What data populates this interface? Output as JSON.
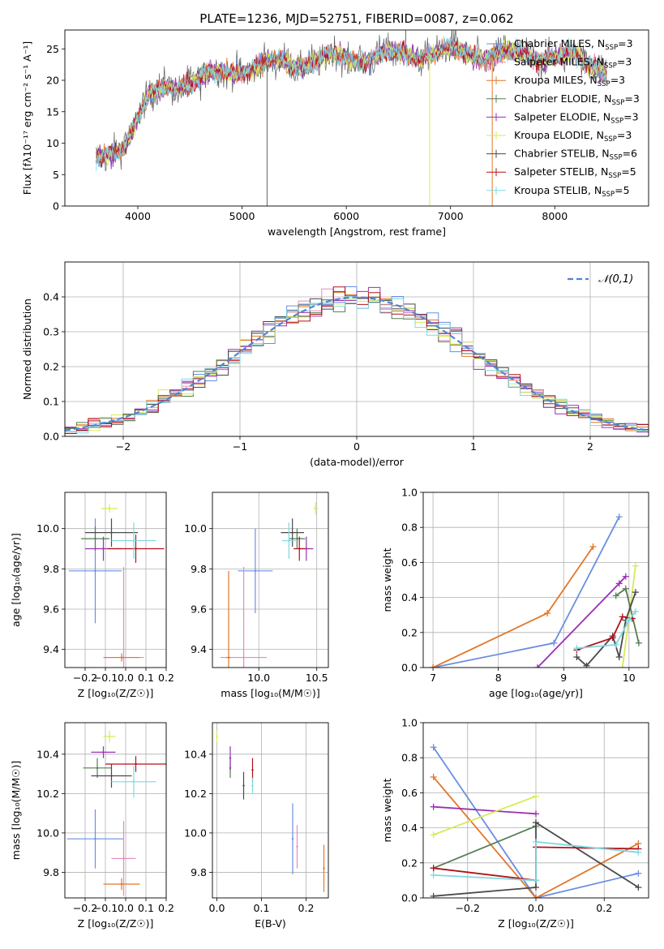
{
  "figure": {
    "title": "PLATE=1236, MJD=52751, FIBERID=0087, z=0.062"
  },
  "models": [
    {
      "name": "Chabrier MILES",
      "nssp": "3",
      "color": "#6a8fe0"
    },
    {
      "name": "Salpeter MILES",
      "nssp": "3",
      "color": "#e58bbf"
    },
    {
      "name": "Kroupa MILES",
      "nssp": "3",
      "color": "#e2772a"
    },
    {
      "name": "Chabrier ELODIE",
      "nssp": "3",
      "color": "#547d54"
    },
    {
      "name": "Salpeter ELODIE",
      "nssp": "3",
      "color": "#9a2fb3"
    },
    {
      "name": "Kroupa ELODIE",
      "nssp": "3",
      "color": "#d7ea57"
    },
    {
      "name": "Chabrier STELIB",
      "nssp": "6",
      "color": "#4a4a4a"
    },
    {
      "name": "Salpeter STELIB",
      "nssp": "5",
      "color": "#b3101a"
    },
    {
      "name": "Kroupa STELIB",
      "nssp": "5",
      "color": "#7fd8e0"
    }
  ],
  "chart_data": [
    {
      "type": "line",
      "xlabel": "wavelength [Angstrom, rest frame]",
      "ylabel": "Flux [fλ10⁻¹⁷ erg cm⁻² s⁻¹ A⁻¹]",
      "xlim": [
        3300,
        8900
      ],
      "ylim": [
        0,
        28
      ],
      "xticks": [
        4000,
        5000,
        6000,
        7000,
        8000
      ],
      "yticks": [
        0,
        5,
        10,
        15,
        20,
        25
      ],
      "x_range_data": [
        3600,
        8500
      ],
      "continuum": {
        "x": [
          3600,
          3700,
          3800,
          3900,
          4000,
          4100,
          4300,
          4500,
          4800,
          5000,
          5300,
          5600,
          6000,
          6500,
          7000,
          7400,
          7800,
          8200,
          8500
        ],
        "y": [
          7,
          8,
          9,
          11,
          14,
          17,
          19,
          20,
          21,
          22,
          22.5,
          23,
          23.5,
          24,
          24.5,
          24,
          24,
          23.5,
          22
        ]
      },
      "spikes": [
        {
          "x": 5240,
          "y": 0
        },
        {
          "x": 6800,
          "y": 0
        },
        {
          "x": 7400,
          "y": 0
        },
        {
          "x": 6570,
          "y": 28
        }
      ],
      "grid": false,
      "legend": "right"
    },
    {
      "type": "bar",
      "xlabel": "(data-model)/error",
      "ylabel": "Normed distribution",
      "xlim": [
        -2.5,
        2.5
      ],
      "ylim": [
        0,
        0.5
      ],
      "xticks": [
        -2,
        -1,
        0,
        1,
        2
      ],
      "yticks": [
        0.0,
        0.1,
        0.2,
        0.3,
        0.4
      ],
      "bin_width": 0.1,
      "grid": true,
      "legend": "top-right",
      "reference_curve": {
        "name": "𝒩(0,1)",
        "color": "#4f84d3",
        "style": "dashed"
      },
      "histogram_peak_range": [
        0.34,
        0.47
      ]
    },
    {
      "type": "scatter",
      "xlabel": "Z [log₁₀(Z/Z☉)]",
      "ylabel": "age  [log₁₀(age/yr)]",
      "xlim": [
        -0.3,
        0.2
      ],
      "ylim": [
        9.31,
        10.18
      ],
      "xticks": [
        -0.2,
        -0.1,
        0.0,
        0.1,
        0.2
      ],
      "yticks": [
        9.4,
        9.6,
        9.8,
        10.0
      ],
      "grid": true,
      "points": [
        {
          "model": 0,
          "x": -0.15,
          "y": 9.79,
          "xerr": 0.13,
          "yerr": 0.26
        },
        {
          "model": 1,
          "x": -0.01,
          "y": 9.36,
          "xerr": 0.1,
          "yerr": 0.45
        },
        {
          "model": 2,
          "x": -0.02,
          "y": 9.36,
          "xerr": 0.09,
          "yerr": 0.02
        },
        {
          "model": 3,
          "x": -0.15,
          "y": 9.95,
          "xerr": 0.07,
          "yerr": 0.06
        },
        {
          "model": 4,
          "x": -0.11,
          "y": 9.9,
          "xerr": 0.09,
          "yerr": 0.06
        },
        {
          "model": 5,
          "x": -0.08,
          "y": 10.1,
          "xerr": 0.04,
          "yerr": 0.02
        },
        {
          "model": 6,
          "x": -0.07,
          "y": 9.98,
          "xerr": 0.13,
          "yerr": 0.07
        },
        {
          "model": 7,
          "x": 0.05,
          "y": 9.9,
          "xerr": 0.14,
          "yerr": 0.07
        },
        {
          "model": 8,
          "x": 0.04,
          "y": 9.94,
          "xerr": 0.11,
          "yerr": 0.09
        }
      ]
    },
    {
      "type": "scatter",
      "xlabel": "mass [log₁₀(M/M☉)]",
      "ylabel": "",
      "xlim": [
        9.6,
        10.6
      ],
      "ylim": [
        9.31,
        10.18
      ],
      "xticks": [
        10.0,
        10.5
      ],
      "yticks": [
        9.4,
        9.6,
        9.8,
        10.0
      ],
      "grid": true,
      "points": [
        {
          "model": 0,
          "x": 9.97,
          "y": 9.79,
          "xerr": 0.15,
          "yerr": 0.21
        },
        {
          "model": 1,
          "x": 9.87,
          "y": 9.36,
          "xerr": 0.2,
          "yerr": 0.45
        },
        {
          "model": 2,
          "x": 9.74,
          "y": 9.36,
          "xerr": 0.02,
          "yerr": 0.43
        },
        {
          "model": 3,
          "x": 10.33,
          "y": 9.95,
          "xerr": 0.07,
          "yerr": 0.05
        },
        {
          "model": 4,
          "x": 10.41,
          "y": 9.9,
          "xerr": 0.06,
          "yerr": 0.06
        },
        {
          "model": 5,
          "x": 10.49,
          "y": 10.1,
          "xerr": 0.02,
          "yerr": 0.03
        },
        {
          "model": 6,
          "x": 10.29,
          "y": 9.98,
          "xerr": 0.1,
          "yerr": 0.07
        },
        {
          "model": 7,
          "x": 10.35,
          "y": 9.9,
          "xerr": 0.05,
          "yerr": 0.06
        },
        {
          "model": 8,
          "x": 10.26,
          "y": 9.94,
          "xerr": 0.06,
          "yerr": 0.09
        }
      ]
    },
    {
      "type": "line",
      "xlabel": "age  [log₁₀(age/yr)]",
      "ylabel": "mass weight",
      "xlim": [
        6.85,
        10.3
      ],
      "ylim": [
        0,
        1
      ],
      "xticks": [
        7,
        8,
        9,
        10
      ],
      "yticks": [
        0.0,
        0.2,
        0.4,
        0.6,
        0.8,
        1.0
      ],
      "grid": true,
      "series": [
        {
          "model": 0,
          "x": [
            7.0,
            8.85,
            9.85
          ],
          "y": [
            0.0,
            0.14,
            0.86
          ]
        },
        {
          "model": 2,
          "x": [
            7.0,
            8.75,
            9.45
          ],
          "y": [
            0.0,
            0.31,
            0.69
          ]
        },
        {
          "model": 4,
          "x": [
            8.6,
            9.85,
            9.95
          ],
          "y": [
            0.0,
            0.48,
            0.52
          ]
        },
        {
          "model": 5,
          "x": [
            9.9,
            10.1
          ],
          "y": [
            0.0,
            0.58
          ]
        },
        {
          "model": 3,
          "x": [
            9.8,
            9.95,
            10.15
          ],
          "y": [
            0.41,
            0.45,
            0.14
          ]
        },
        {
          "model": 6,
          "x": [
            9.2,
            9.35,
            9.75,
            9.85,
            9.95,
            10.1
          ],
          "y": [
            0.06,
            0.01,
            0.18,
            0.06,
            0.27,
            0.43
          ]
        },
        {
          "model": 7,
          "x": [
            9.2,
            9.75,
            9.9,
            10.05
          ],
          "y": [
            0.1,
            0.17,
            0.29,
            0.28
          ]
        },
        {
          "model": 8,
          "x": [
            9.2,
            9.8,
            10.0,
            10.1
          ],
          "y": [
            0.11,
            0.13,
            0.27,
            0.32
          ]
        }
      ]
    },
    {
      "type": "scatter",
      "xlabel": "Z [log₁₀(Z/Z☉)]",
      "ylabel": "mass [log₁₀(M/M☉)]",
      "xlim": [
        -0.3,
        0.2
      ],
      "ylim": [
        9.67,
        10.56
      ],
      "xticks": [
        -0.2,
        -0.1,
        0.0,
        0.1,
        0.2
      ],
      "yticks": [
        9.8,
        10.0,
        10.2,
        10.4
      ],
      "grid": true,
      "points": [
        {
          "model": 0,
          "x": -0.15,
          "y": 9.97,
          "xerr": 0.14,
          "yerr": 0.15
        },
        {
          "model": 1,
          "x": -0.01,
          "y": 9.87,
          "xerr": 0.06,
          "yerr": 0.19
        },
        {
          "model": 2,
          "x": -0.02,
          "y": 9.74,
          "xerr": 0.09,
          "yerr": 0.03
        },
        {
          "model": 3,
          "x": -0.14,
          "y": 10.33,
          "xerr": 0.07,
          "yerr": 0.05
        },
        {
          "model": 4,
          "x": -0.11,
          "y": 10.41,
          "xerr": 0.06,
          "yerr": 0.03
        },
        {
          "model": 5,
          "x": -0.08,
          "y": 10.49,
          "xerr": 0.03,
          "yerr": 0.03
        },
        {
          "model": 6,
          "x": -0.07,
          "y": 10.29,
          "xerr": 0.1,
          "yerr": 0.06
        },
        {
          "model": 7,
          "x": 0.05,
          "y": 10.35,
          "xerr": 0.15,
          "yerr": 0.04
        },
        {
          "model": 8,
          "x": 0.04,
          "y": 10.26,
          "xerr": 0.11,
          "yerr": 0.08
        }
      ]
    },
    {
      "type": "scatter",
      "xlabel": "E(B-V)",
      "ylabel": "",
      "xlim": [
        -0.01,
        0.25
      ],
      "ylim": [
        9.67,
        10.56
      ],
      "xticks": [
        0.0,
        0.1,
        0.2
      ],
      "yticks": [
        9.8,
        10.0,
        10.2,
        10.4
      ],
      "grid": true,
      "points": [
        {
          "model": 0,
          "x": 0.17,
          "y": 9.97,
          "xerr": 0.0,
          "yerr": 0.18
        },
        {
          "model": 1,
          "x": 0.18,
          "y": 9.93,
          "xerr": 0.0,
          "yerr": 0.11
        },
        {
          "model": 2,
          "x": 0.24,
          "y": 9.82,
          "xerr": 0.0,
          "yerr": 0.12
        },
        {
          "model": 3,
          "x": 0.03,
          "y": 10.33,
          "xerr": 0.0,
          "yerr": 0.05
        },
        {
          "model": 4,
          "x": 0.03,
          "y": 10.38,
          "xerr": 0.0,
          "yerr": 0.06
        },
        {
          "model": 5,
          "x": 0.0,
          "y": 10.49,
          "xerr": 0.0,
          "yerr": 0.03
        },
        {
          "model": 6,
          "x": 0.06,
          "y": 10.24,
          "xerr": 0.0,
          "yerr": 0.07
        },
        {
          "model": 7,
          "x": 0.08,
          "y": 10.32,
          "xerr": 0.0,
          "yerr": 0.06
        },
        {
          "model": 8,
          "x": 0.08,
          "y": 10.24,
          "xerr": 0.0,
          "yerr": 0.04
        }
      ]
    },
    {
      "type": "line",
      "xlabel": "Z [log₁₀(Z/Z☉)]",
      "ylabel": "mass weight",
      "xlim": [
        -0.33,
        0.33
      ],
      "ylim": [
        0,
        1
      ],
      "xticks": [
        -0.2,
        0.0,
        0.2
      ],
      "yticks": [
        0.0,
        0.2,
        0.4,
        0.6,
        0.8,
        1.0
      ],
      "grid": true,
      "series": [
        {
          "model": 0,
          "x": [
            -0.3,
            0.0,
            0.3
          ],
          "y": [
            0.86,
            0.0,
            0.14
          ]
        },
        {
          "model": 2,
          "x": [
            -0.3,
            0.0,
            0.3
          ],
          "y": [
            0.69,
            0.0,
            0.31
          ]
        },
        {
          "model": 4,
          "x": [
            -0.3,
            0.0
          ],
          "y": [
            0.52,
            0.48
          ]
        },
        {
          "model": 5,
          "x": [
            -0.3,
            0.0
          ],
          "y": [
            0.36,
            0.58
          ]
        },
        {
          "model": 3,
          "x": [
            -0.3,
            0.0
          ],
          "y": [
            0.17,
            0.41
          ]
        },
        {
          "model": 6,
          "x": [
            -0.3,
            0.0,
            0.0,
            0.3
          ],
          "y": [
            0.01,
            0.06,
            0.43,
            0.06
          ]
        },
        {
          "model": 7,
          "x": [
            -0.3,
            0.0,
            0.0,
            0.3
          ],
          "y": [
            0.17,
            0.1,
            0.29,
            0.28
          ]
        },
        {
          "model": 8,
          "x": [
            -0.3,
            0.0,
            0.0,
            0.3
          ],
          "y": [
            0.13,
            0.1,
            0.32,
            0.26
          ]
        }
      ]
    }
  ]
}
